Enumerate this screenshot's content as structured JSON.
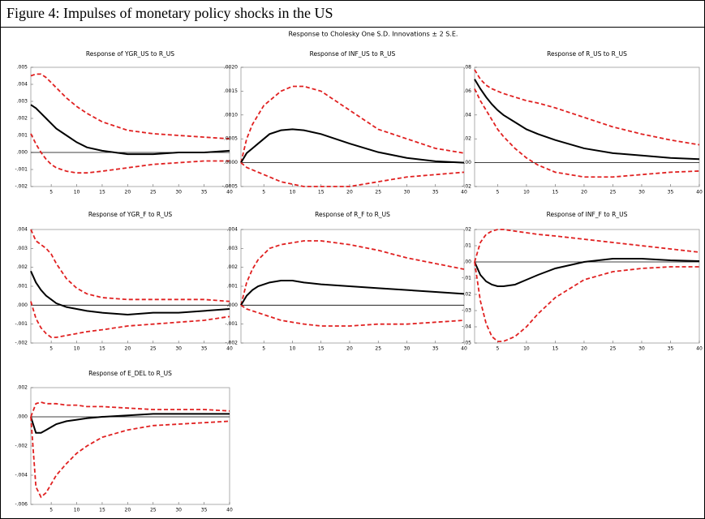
{
  "caption": "Figure 4: Impulses of monetary policy shocks in the US",
  "subtitle": "Response to Cholesky One S.D. Innovations ± 2 S.E.",
  "chart_data": [
    {
      "type": "line",
      "title": "Response of YGR_US to R_US",
      "x": [
        1,
        2,
        3,
        4,
        5,
        6,
        8,
        10,
        12,
        15,
        20,
        25,
        30,
        35,
        40
      ],
      "xlim": [
        1,
        40
      ],
      "xticks": [
        5,
        10,
        15,
        20,
        25,
        30,
        35,
        40
      ],
      "ylim": [
        -0.002,
        0.005
      ],
      "yticks": [
        {
          "value": 0.005,
          "label": ".005"
        },
        {
          "value": 0.004,
          "label": ".004"
        },
        {
          "value": 0.003,
          "label": ".003"
        },
        {
          "value": 0.002,
          "label": ".002"
        },
        {
          "value": 0.001,
          "label": ".001"
        },
        {
          "value": 0,
          "label": ".000"
        },
        {
          "value": -0.001,
          "label": "-.001"
        },
        {
          "value": -0.002,
          "label": "-.002"
        }
      ],
      "series": [
        {
          "color": "#e02020",
          "style": "dashed",
          "values": [
            0.0045,
            0.0046,
            0.0046,
            0.0044,
            0.0041,
            0.0038,
            0.0032,
            0.0027,
            0.0023,
            0.0018,
            0.0013,
            0.0011,
            0.001,
            0.0009,
            0.0008
          ]
        },
        {
          "color": "#000000",
          "style": "solid",
          "values": [
            0.0028,
            0.0026,
            0.0023,
            0.002,
            0.0017,
            0.0014,
            0.001,
            0.0006,
            0.0003,
            0.0001,
            -0.0001,
            -0.0001,
            0,
            0,
            0.0001
          ]
        },
        {
          "color": "#e02020",
          "style": "dashed",
          "values": [
            0.0011,
            0.0005,
            0,
            -0.0004,
            -0.0007,
            -0.0009,
            -0.0011,
            -0.0012,
            -0.0012,
            -0.0011,
            -0.0009,
            -0.0007,
            -0.0006,
            -0.0005,
            -0.0005
          ]
        }
      ]
    },
    {
      "type": "line",
      "title": "Response of INF_US to R_US",
      "x": [
        1,
        2,
        3,
        4,
        5,
        6,
        8,
        10,
        12,
        15,
        20,
        25,
        30,
        35,
        40
      ],
      "xlim": [
        1,
        40
      ],
      "xticks": [
        5,
        10,
        15,
        20,
        25,
        30,
        35,
        40
      ],
      "ylim": [
        -0.0005,
        0.002
      ],
      "yticks": [
        {
          "value": 0.002,
          "label": ".0020"
        },
        {
          "value": 0.0015,
          "label": ".0015"
        },
        {
          "value": 0.001,
          "label": ".0010"
        },
        {
          "value": 0.0005,
          "label": ".0005"
        },
        {
          "value": 0,
          "label": ".0000"
        },
        {
          "value": -0.0005,
          "label": "-.0005"
        }
      ],
      "series": [
        {
          "color": "#e02020",
          "style": "dashed",
          "values": [
            0,
            0.0005,
            0.0008,
            0.001,
            0.0012,
            0.0013,
            0.0015,
            0.0016,
            0.0016,
            0.0015,
            0.0011,
            0.0007,
            0.0005,
            0.0003,
            0.0002
          ]
        },
        {
          "color": "#000000",
          "style": "solid",
          "values": [
            0,
            0.0002,
            0.0003,
            0.0004,
            0.0005,
            0.0006,
            0.00068,
            0.0007,
            0.00068,
            0.0006,
            0.0004,
            0.00022,
            0.0001,
            3e-05,
            0
          ]
        },
        {
          "color": "#e02020",
          "style": "dashed",
          "values": [
            0,
            -0.0001,
            -0.00015,
            -0.0002,
            -0.00025,
            -0.0003,
            -0.0004,
            -0.00045,
            -0.0005,
            -0.0005,
            -0.0005,
            -0.0004,
            -0.0003,
            -0.00025,
            -0.0002
          ]
        }
      ]
    },
    {
      "type": "line",
      "title": "Response of R_US to R_US",
      "x": [
        1,
        2,
        3,
        4,
        5,
        6,
        8,
        10,
        12,
        15,
        20,
        25,
        30,
        35,
        40
      ],
      "xlim": [
        1,
        40
      ],
      "xticks": [
        5,
        10,
        15,
        20,
        25,
        30,
        35,
        40
      ],
      "ylim": [
        -0.02,
        0.08
      ],
      "yticks": [
        {
          "value": 0.08,
          "label": ".08"
        },
        {
          "value": 0.06,
          "label": ".06"
        },
        {
          "value": 0.04,
          "label": ".04"
        },
        {
          "value": 0.02,
          "label": ".02"
        },
        {
          "value": 0,
          "label": ".00"
        },
        {
          "value": -0.02,
          "label": "-.02"
        }
      ],
      "series": [
        {
          "color": "#e02020",
          "style": "dashed",
          "values": [
            0.078,
            0.07,
            0.065,
            0.062,
            0.06,
            0.058,
            0.055,
            0.052,
            0.05,
            0.046,
            0.038,
            0.03,
            0.024,
            0.019,
            0.015
          ]
        },
        {
          "color": "#000000",
          "style": "solid",
          "values": [
            0.07,
            0.062,
            0.055,
            0.049,
            0.044,
            0.04,
            0.034,
            0.028,
            0.024,
            0.019,
            0.012,
            0.008,
            0.006,
            0.004,
            0.003
          ]
        },
        {
          "color": "#e02020",
          "style": "dashed",
          "values": [
            0.062,
            0.052,
            0.044,
            0.036,
            0.028,
            0.022,
            0.012,
            0.004,
            -0.002,
            -0.008,
            -0.012,
            -0.012,
            -0.01,
            -0.008,
            -0.007
          ]
        }
      ]
    },
    {
      "type": "line",
      "title": "Response of YGR_F to R_US",
      "x": [
        1,
        2,
        3,
        4,
        5,
        6,
        8,
        10,
        12,
        15,
        20,
        25,
        30,
        35,
        40
      ],
      "xlim": [
        1,
        40
      ],
      "xticks": [
        5,
        10,
        15,
        20,
        25,
        30,
        35,
        40
      ],
      "ylim": [
        -0.002,
        0.004
      ],
      "yticks": [
        {
          "value": 0.004,
          "label": ".004"
        },
        {
          "value": 0.003,
          "label": ".003"
        },
        {
          "value": 0.002,
          "label": ".002"
        },
        {
          "value": 0.001,
          "label": ".001"
        },
        {
          "value": 0,
          "label": ".000"
        },
        {
          "value": -0.001,
          "label": "-.001"
        },
        {
          "value": -0.002,
          "label": "-.002"
        }
      ],
      "series": [
        {
          "color": "#e02020",
          "style": "dashed",
          "values": [
            0.004,
            0.0034,
            0.0032,
            0.003,
            0.0027,
            0.0022,
            0.0014,
            0.0009,
            0.0006,
            0.0004,
            0.0003,
            0.0003,
            0.0003,
            0.0003,
            0.0002
          ]
        },
        {
          "color": "#000000",
          "style": "solid",
          "values": [
            0.0018,
            0.0012,
            0.0008,
            0.0005,
            0.0003,
            0.0001,
            -0.0001,
            -0.0002,
            -0.0003,
            -0.0004,
            -0.0005,
            -0.0004,
            -0.0004,
            -0.0003,
            -0.0002
          ]
        },
        {
          "color": "#e02020",
          "style": "dashed",
          "values": [
            0.0002,
            -0.0007,
            -0.0012,
            -0.0015,
            -0.0017,
            -0.0017,
            -0.0016,
            -0.0015,
            -0.0014,
            -0.0013,
            -0.0011,
            -0.001,
            -0.0009,
            -0.0008,
            -0.0006
          ]
        }
      ]
    },
    {
      "type": "line",
      "title": "Response of R_F to R_US",
      "x": [
        1,
        2,
        3,
        4,
        5,
        6,
        8,
        10,
        12,
        15,
        20,
        25,
        30,
        35,
        40
      ],
      "xlim": [
        1,
        40
      ],
      "xticks": [
        5,
        10,
        15,
        20,
        25,
        30,
        35,
        40
      ],
      "ylim": [
        -0.002,
        0.004
      ],
      "yticks": [
        {
          "value": 0.004,
          "label": ".004"
        },
        {
          "value": 0.003,
          "label": ".003"
        },
        {
          "value": 0.002,
          "label": ".002"
        },
        {
          "value": 0.001,
          "label": ".001"
        },
        {
          "value": 0,
          "label": ".000"
        },
        {
          "value": -0.001,
          "label": "-.001"
        },
        {
          "value": -0.002,
          "label": "-.002"
        }
      ],
      "series": [
        {
          "color": "#e02020",
          "style": "dashed",
          "values": [
            0,
            0.0012,
            0.0019,
            0.0024,
            0.0027,
            0.003,
            0.0032,
            0.0033,
            0.0034,
            0.0034,
            0.0032,
            0.0029,
            0.0025,
            0.0022,
            0.0019
          ]
        },
        {
          "color": "#000000",
          "style": "solid",
          "values": [
            0,
            0.0005,
            0.0008,
            0.001,
            0.0011,
            0.0012,
            0.0013,
            0.0013,
            0.0012,
            0.0011,
            0.001,
            0.0009,
            0.0008,
            0.0007,
            0.0006
          ]
        },
        {
          "color": "#e02020",
          "style": "dashed",
          "values": [
            0,
            -0.0002,
            -0.0003,
            -0.0004,
            -0.0005,
            -0.0006,
            -0.0008,
            -0.0009,
            -0.001,
            -0.0011,
            -0.0011,
            -0.001,
            -0.001,
            -0.0009,
            -0.0008
          ]
        }
      ]
    },
    {
      "type": "line",
      "title": "Response of INF_F to R_US",
      "x": [
        1,
        2,
        3,
        4,
        5,
        6,
        8,
        10,
        12,
        15,
        20,
        25,
        30,
        35,
        40
      ],
      "xlim": [
        1,
        40
      ],
      "xticks": [
        5,
        10,
        15,
        20,
        25,
        30,
        35,
        40
      ],
      "ylim": [
        -0.05,
        0.02
      ],
      "yticks": [
        {
          "value": 0.02,
          "label": ".02"
        },
        {
          "value": 0.01,
          "label": ".01"
        },
        {
          "value": 0,
          "label": ".00"
        },
        {
          "value": -0.01,
          "label": "-.01"
        },
        {
          "value": -0.02,
          "label": "-.02"
        },
        {
          "value": -0.03,
          "label": "-.03"
        },
        {
          "value": -0.04,
          "label": "-.04"
        },
        {
          "value": -0.05,
          "label": "-.05"
        }
      ],
      "series": [
        {
          "color": "#e02020",
          "style": "dashed",
          "values": [
            0,
            0.012,
            0.017,
            0.019,
            0.02,
            0.02,
            0.019,
            0.018,
            0.017,
            0.016,
            0.014,
            0.012,
            0.01,
            0.008,
            0.006
          ]
        },
        {
          "color": "#000000",
          "style": "solid",
          "values": [
            0,
            -0.008,
            -0.012,
            -0.014,
            -0.015,
            -0.015,
            -0.014,
            -0.011,
            -0.008,
            -0.004,
            0,
            0.002,
            0.002,
            0.001,
            0.0005
          ]
        },
        {
          "color": "#e02020",
          "style": "dashed",
          "values": [
            0,
            -0.024,
            -0.038,
            -0.046,
            -0.049,
            -0.049,
            -0.046,
            -0.04,
            -0.032,
            -0.022,
            -0.011,
            -0.006,
            -0.004,
            -0.003,
            -0.003
          ]
        }
      ]
    },
    {
      "type": "line",
      "title": "Response of E_DEL to R_US",
      "x": [
        1,
        2,
        3,
        4,
        5,
        6,
        8,
        10,
        12,
        15,
        20,
        25,
        30,
        35,
        40
      ],
      "xlim": [
        1,
        40
      ],
      "xticks": [
        5,
        10,
        15,
        20,
        25,
        30,
        35,
        40
      ],
      "ylim": [
        -0.006,
        0.002
      ],
      "yticks": [
        {
          "value": 0.002,
          "label": ".002"
        },
        {
          "value": 0,
          "label": ".000"
        },
        {
          "value": -0.002,
          "label": "-.002"
        },
        {
          "value": -0.004,
          "label": "-.004"
        },
        {
          "value": -0.006,
          "label": "-.006"
        }
      ],
      "series": [
        {
          "color": "#e02020",
          "style": "dashed",
          "values": [
            0,
            0.0009,
            0.001,
            0.0009,
            0.0009,
            0.0009,
            0.0008,
            0.0008,
            0.0007,
            0.0007,
            0.0006,
            0.0005,
            0.0005,
            0.0005,
            0.0004
          ]
        },
        {
          "color": "#000000",
          "style": "solid",
          "values": [
            0,
            -0.0011,
            -0.0011,
            -0.0009,
            -0.0007,
            -0.0005,
            -0.0003,
            -0.0002,
            -0.0001,
            0,
            0.0001,
            0.0002,
            0.0002,
            0.0002,
            0.0002
          ]
        },
        {
          "color": "#e02020",
          "style": "dashed",
          "values": [
            0,
            -0.0048,
            -0.0055,
            -0.0052,
            -0.0046,
            -0.004,
            -0.0032,
            -0.0025,
            -0.002,
            -0.0014,
            -0.0009,
            -0.0006,
            -0.0005,
            -0.0004,
            -0.0003
          ]
        }
      ]
    }
  ]
}
